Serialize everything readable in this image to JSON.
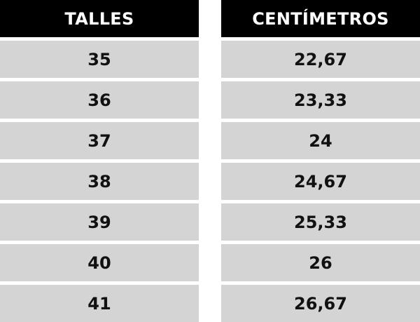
{
  "headers": {
    "talles": "TALLES",
    "centimetros": "CENTÍMETROS"
  },
  "rows": [
    {
      "talle": "35",
      "cm": "22,67"
    },
    {
      "talle": "36",
      "cm": "23,33"
    },
    {
      "talle": "37",
      "cm": "24"
    },
    {
      "talle": "38",
      "cm": "24,67"
    },
    {
      "talle": "39",
      "cm": "25,33"
    },
    {
      "talle": "40",
      "cm": "26"
    },
    {
      "talle": "41",
      "cm": "26,67"
    }
  ],
  "colors": {
    "header_bg": "#000000",
    "header_text": "#ffffff",
    "row_bg": "#d4d4d4",
    "row_text": "#111111"
  }
}
